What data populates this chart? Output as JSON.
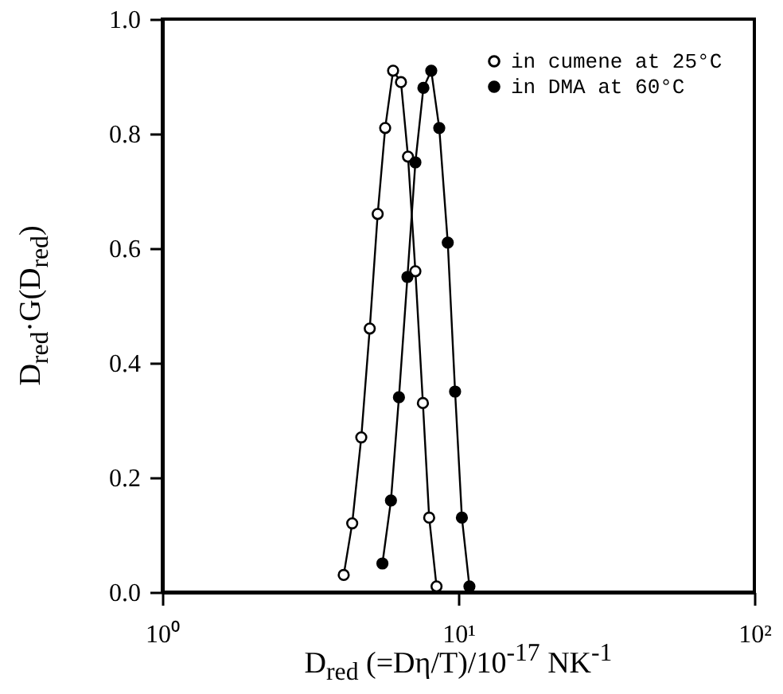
{
  "chart_data": {
    "type": "line",
    "xlabel": "D$_{red}$  (=Dη/T)/10$^{-17}$  NK$^{-1}$",
    "ylabel": "D$_{red}$·G(D$_{red}$)",
    "log": "x",
    "xlim": [
      1,
      100
    ],
    "ylim": [
      0,
      1.0
    ],
    "xticks": [
      {
        "value": 1,
        "label": "10⁰"
      },
      {
        "value": 10,
        "label": "10¹"
      },
      {
        "value": 100,
        "label": "10²"
      }
    ],
    "yticks": [
      {
        "value": 0,
        "label": "0.0"
      },
      {
        "value": 0.2,
        "label": "0.2"
      },
      {
        "value": 0.4,
        "label": "0.4"
      },
      {
        "value": 0.6,
        "label": "0.6"
      },
      {
        "value": 0.8,
        "label": "0.8"
      },
      {
        "value": 1.0,
        "label": "1.0"
      }
    ],
    "grid": false,
    "legend": "top right",
    "marker": "circle",
    "line_style": "solid",
    "series": [
      {
        "name": "in cumene at 25°C",
        "color": "#000000",
        "x": [
          4.1,
          4.38,
          4.7,
          5.02,
          5.34,
          5.66,
          6.02,
          6.4,
          6.76,
          7.16,
          7.59,
          7.97,
          8.44
        ],
        "values": [
          0.03,
          0.12,
          0.27,
          0.46,
          0.66,
          0.81,
          0.91,
          0.89,
          0.76,
          0.56,
          0.33,
          0.13,
          0.01
        ]
      },
      {
        "name": "in DMA at 60°C",
        "color": "#000000",
        "x": [
          5.54,
          5.92,
          6.3,
          6.73,
          7.16,
          7.62,
          8.1,
          8.62,
          9.21,
          9.75,
          10.28,
          10.9
        ],
        "values": [
          0.05,
          0.16,
          0.34,
          0.55,
          0.75,
          0.88,
          0.91,
          0.81,
          0.61,
          0.35,
          0.13,
          0.01
        ]
      }
    ]
  }
}
